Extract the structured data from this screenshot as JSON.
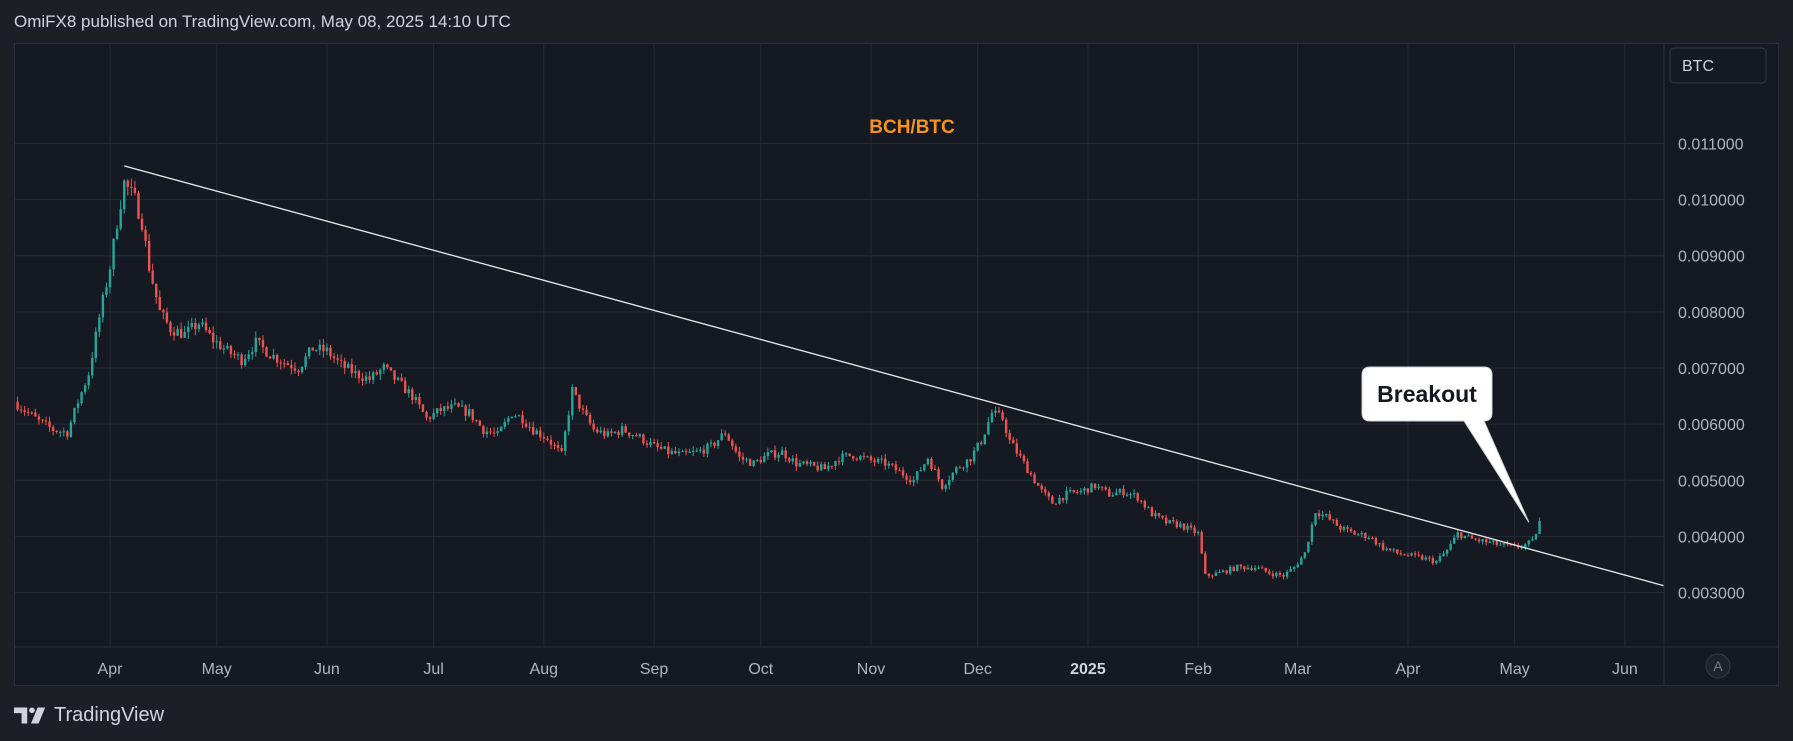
{
  "header": {
    "text": "OmiFX8 published on TradingView.com, May 08, 2025 14:10 UTC"
  },
  "footer": {
    "brand": "TradingView"
  },
  "colors": {
    "up": "#26a69a",
    "down": "#ef5350",
    "trendline": "#e8e8e8",
    "title": "#f7931a",
    "grid": "#262a35",
    "background": "#151922"
  },
  "chart_data": {
    "type": "candlestick",
    "title": "BCH/BTC",
    "currency_label": "BTC",
    "scale_mode_label": "A",
    "y_ticks": [
      "0.011000",
      "0.010000",
      "0.009000",
      "0.008000",
      "0.007000",
      "0.006000",
      "0.005000",
      "0.004000",
      "0.003000"
    ],
    "ylim": [
      0.00203,
      0.01279
    ],
    "x_ticks": [
      {
        "label": "Apr",
        "date": "2024-04-01",
        "bold": false
      },
      {
        "label": "May",
        "date": "2024-05-01",
        "bold": false
      },
      {
        "label": "Jun",
        "date": "2024-06-01",
        "bold": false
      },
      {
        "label": "Jul",
        "date": "2024-07-01",
        "bold": false
      },
      {
        "label": "Aug",
        "date": "2024-08-01",
        "bold": false
      },
      {
        "label": "Sep",
        "date": "2024-09-01",
        "bold": false
      },
      {
        "label": "Oct",
        "date": "2024-10-01",
        "bold": false
      },
      {
        "label": "Nov",
        "date": "2024-11-01",
        "bold": false
      },
      {
        "label": "Dec",
        "date": "2024-12-01",
        "bold": false
      },
      {
        "label": "2025",
        "date": "2025-01-01",
        "bold": true
      },
      {
        "label": "Feb",
        "date": "2025-02-01",
        "bold": false
      },
      {
        "label": "Mar",
        "date": "2025-03-01",
        "bold": false
      },
      {
        "label": "Apr",
        "date": "2025-04-01",
        "bold": false
      },
      {
        "label": "May",
        "date": "2025-05-01",
        "bold": false
      },
      {
        "label": "Jun",
        "date": "2025-06-01",
        "bold": false
      }
    ],
    "xlim": [
      "2024-03-05",
      "2025-06-12"
    ],
    "trendline": {
      "start": {
        "date": "2024-04-05",
        "price": 0.0106
      },
      "end": {
        "date": "2025-06-12",
        "price": 0.003122
      }
    },
    "annotation": {
      "text": "Breakout",
      "target": {
        "date": "2025-05-05",
        "price": 0.00425
      }
    },
    "close_path": [
      [
        "2024-03-05",
        0.0064
      ],
      [
        "2024-03-08",
        0.00625
      ],
      [
        "2024-03-12",
        0.00605
      ],
      [
        "2024-03-16",
        0.0059
      ],
      [
        "2024-03-20",
        0.00585
      ],
      [
        "2024-03-23",
        0.0064
      ],
      [
        "2024-03-26",
        0.0069
      ],
      [
        "2024-03-29",
        0.0079
      ],
      [
        "2024-04-01",
        0.0088
      ],
      [
        "2024-04-03",
        0.0096
      ],
      [
        "2024-04-05",
        0.0103
      ],
      [
        "2024-04-08",
        0.01
      ],
      [
        "2024-04-10",
        0.0096
      ],
      [
        "2024-04-12",
        0.0088
      ],
      [
        "2024-04-15",
        0.008
      ],
      [
        "2024-04-18",
        0.0077
      ],
      [
        "2024-04-22",
        0.0076
      ],
      [
        "2024-04-26",
        0.0078
      ],
      [
        "2024-04-30",
        0.0075
      ],
      [
        "2024-05-04",
        0.0073
      ],
      [
        "2024-05-08",
        0.00715
      ],
      [
        "2024-05-12",
        0.00745
      ],
      [
        "2024-05-16",
        0.00725
      ],
      [
        "2024-05-20",
        0.0071
      ],
      [
        "2024-05-24",
        0.007
      ],
      [
        "2024-05-28",
        0.00735
      ],
      [
        "2024-06-01",
        0.0073
      ],
      [
        "2024-06-05",
        0.00705
      ],
      [
        "2024-06-09",
        0.0069
      ],
      [
        "2024-06-13",
        0.0068
      ],
      [
        "2024-06-17",
        0.007
      ],
      [
        "2024-06-21",
        0.00675
      ],
      [
        "2024-06-25",
        0.0065
      ],
      [
        "2024-06-29",
        0.0061
      ],
      [
        "2024-07-03",
        0.00625
      ],
      [
        "2024-07-07",
        0.0063
      ],
      [
        "2024-07-11",
        0.0062
      ],
      [
        "2024-07-15",
        0.0059
      ],
      [
        "2024-07-19",
        0.0058
      ],
      [
        "2024-07-23",
        0.0062
      ],
      [
        "2024-07-26",
        0.0061
      ],
      [
        "2024-07-29",
        0.0059
      ],
      [
        "2024-08-02",
        0.00575
      ],
      [
        "2024-08-06",
        0.00545
      ],
      [
        "2024-08-09",
        0.0066
      ],
      [
        "2024-08-12",
        0.0062
      ],
      [
        "2024-08-15",
        0.0059
      ],
      [
        "2024-08-19",
        0.0058
      ],
      [
        "2024-08-23",
        0.0059
      ],
      [
        "2024-08-27",
        0.0058
      ],
      [
        "2024-09-01",
        0.0056
      ],
      [
        "2024-09-05",
        0.0055
      ],
      [
        "2024-09-09",
        0.00545
      ],
      [
        "2024-09-13",
        0.0055
      ],
      [
        "2024-09-17",
        0.0056
      ],
      [
        "2024-09-21",
        0.00585
      ],
      [
        "2024-09-25",
        0.0054
      ],
      [
        "2024-09-29",
        0.0053
      ],
      [
        "2024-10-03",
        0.00545
      ],
      [
        "2024-10-07",
        0.0055
      ],
      [
        "2024-10-11",
        0.0053
      ],
      [
        "2024-10-15",
        0.00525
      ],
      [
        "2024-10-19",
        0.0052
      ],
      [
        "2024-10-23",
        0.0054
      ],
      [
        "2024-10-27",
        0.00545
      ],
      [
        "2024-11-01",
        0.00535
      ],
      [
        "2024-11-05",
        0.0053
      ],
      [
        "2024-11-09",
        0.00515
      ],
      [
        "2024-11-13",
        0.005
      ],
      [
        "2024-11-17",
        0.0054
      ],
      [
        "2024-11-21",
        0.0049
      ],
      [
        "2024-11-25",
        0.0052
      ],
      [
        "2024-11-29",
        0.0054
      ],
      [
        "2024-12-02",
        0.0057
      ],
      [
        "2024-12-05",
        0.0062
      ],
      [
        "2024-12-08",
        0.0061
      ],
      [
        "2024-12-10",
        0.0057
      ],
      [
        "2024-12-13",
        0.0054
      ],
      [
        "2024-12-16",
        0.0051
      ],
      [
        "2024-12-19",
        0.0048
      ],
      [
        "2024-12-22",
        0.0046
      ],
      [
        "2024-12-26",
        0.00475
      ],
      [
        "2024-12-30",
        0.0048
      ],
      [
        "2025-01-03",
        0.0049
      ],
      [
        "2025-01-07",
        0.00475
      ],
      [
        "2025-01-11",
        0.0048
      ],
      [
        "2025-01-15",
        0.0047
      ],
      [
        "2025-01-19",
        0.0044
      ],
      [
        "2025-01-23",
        0.00425
      ],
      [
        "2025-01-27",
        0.0042
      ],
      [
        "2025-02-01",
        0.00405
      ],
      [
        "2025-02-03",
        0.0033
      ],
      [
        "2025-02-07",
        0.00335
      ],
      [
        "2025-02-12",
        0.00345
      ],
      [
        "2025-02-17",
        0.00345
      ],
      [
        "2025-02-21",
        0.00335
      ],
      [
        "2025-02-25",
        0.0033
      ],
      [
        "2025-02-28",
        0.00345
      ],
      [
        "2025-03-03",
        0.0037
      ],
      [
        "2025-03-06",
        0.00445
      ],
      [
        "2025-03-09",
        0.00435
      ],
      [
        "2025-03-13",
        0.00415
      ],
      [
        "2025-03-17",
        0.00405
      ],
      [
        "2025-03-21",
        0.004
      ],
      [
        "2025-03-25",
        0.0038
      ],
      [
        "2025-03-29",
        0.0037
      ],
      [
        "2025-04-02",
        0.00365
      ],
      [
        "2025-04-06",
        0.0036
      ],
      [
        "2025-04-09",
        0.00355
      ],
      [
        "2025-04-12",
        0.00375
      ],
      [
        "2025-04-15",
        0.00405
      ],
      [
        "2025-04-19",
        0.00395
      ],
      [
        "2025-04-23",
        0.0039
      ],
      [
        "2025-04-27",
        0.00385
      ],
      [
        "2025-05-01",
        0.0038
      ],
      [
        "2025-05-04",
        0.00385
      ],
      [
        "2025-05-06",
        0.0039
      ],
      [
        "2025-05-08",
        0.00425
      ]
    ]
  }
}
